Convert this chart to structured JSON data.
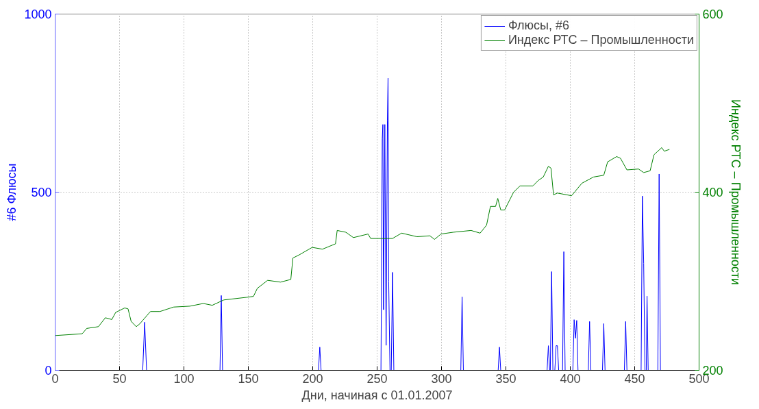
{
  "chart_data": {
    "type": "line",
    "xlabel": "Дни, начиная с 01.01.2007",
    "ylabel": "#6 Флюсы",
    "y2label": "Индекс РТС – Промышленности",
    "xlim": [
      0,
      500
    ],
    "xticks": [
      0,
      50,
      100,
      150,
      200,
      250,
      300,
      350,
      400,
      450,
      500
    ],
    "ylim": [
      0,
      1000
    ],
    "yticks": [
      0,
      500,
      1000
    ],
    "y2lim": [
      200,
      600
    ],
    "y2ticks": [
      200,
      400,
      600
    ],
    "grid": true,
    "legend": "top right",
    "line_style": "solid",
    "series": [
      {
        "name": "Флюсы, #6",
        "color": "#0000ff",
        "x": [
          0,
          68,
          69.5,
          71,
          128,
          129,
          130,
          204.5,
          205.5,
          206.5,
          253,
          254,
          254.5,
          255,
          256,
          257,
          258,
          258.5,
          259,
          260,
          261,
          262,
          263,
          315,
          316,
          317,
          344,
          345,
          346,
          382,
          383,
          384,
          384.5,
          385.5,
          386.5,
          388,
          389,
          390,
          391,
          394,
          395,
          396,
          402,
          403,
          404,
          405,
          406,
          414,
          415,
          416,
          425,
          426,
          427,
          442,
          443,
          444,
          455,
          456,
          457,
          458,
          459,
          459.6,
          460.5,
          468,
          469,
          470,
          478
        ],
        "values": [
          0,
          0,
          135,
          0,
          0,
          210,
          0,
          0,
          65,
          0,
          0,
          650,
          690,
          170,
          690,
          70,
          700,
          820,
          250,
          0,
          0,
          275,
          0,
          0,
          206,
          0,
          0,
          65,
          0,
          0,
          69,
          0,
          0,
          277,
          0,
          0,
          69,
          69,
          0,
          0,
          333,
          0,
          0,
          142,
          90,
          140,
          0,
          0,
          137,
          0,
          0,
          131,
          0,
          0,
          137,
          0,
          0,
          489,
          300,
          0,
          0,
          208,
          0,
          0,
          551,
          0,
          0
        ]
      },
      {
        "name": "Индекс РТС – Промышленности",
        "color": "#008000",
        "axis": "y2",
        "x": [
          0,
          21,
          24.5,
          33.6,
          39,
          44,
          47,
          54,
          56.6,
          59,
          63,
          65.6,
          74,
          81.4,
          92,
          104.6,
          115,
          122,
          131,
          149,
          154,
          157,
          165,
          175,
          183,
          184.6,
          190,
          199.6,
          207.6,
          217.7,
          219,
          225.7,
          231.6,
          243,
          245,
          262,
          269,
          281,
          291,
          294.6,
          299.6,
          309,
          323,
          330,
          335,
          338,
          342,
          343.7,
          346,
          349,
          356,
          361,
          371,
          375,
          379,
          383,
          385,
          387,
          390,
          401,
          409,
          418,
          426,
          429,
          436,
          439,
          444,
          453,
          457,
          462,
          465,
          471,
          473,
          477
        ],
        "values": [
          239,
          241,
          247,
          249,
          259,
          257,
          265,
          270,
          269,
          255,
          249,
          252,
          266,
          266,
          271,
          272,
          275,
          273,
          279,
          282,
          283,
          292,
          301,
          299,
          302,
          326,
          330,
          338,
          336,
          342,
          357,
          355,
          349,
          353,
          348,
          348,
          354,
          350,
          351,
          347,
          353,
          355,
          357,
          354,
          363,
          384,
          384,
          393,
          380,
          380,
          400,
          407,
          407,
          413,
          417,
          429,
          427,
          397,
          399,
          396,
          410,
          417,
          419,
          434,
          440,
          438,
          425,
          426,
          422,
          424,
          442,
          450,
          446,
          448
        ]
      }
    ]
  }
}
